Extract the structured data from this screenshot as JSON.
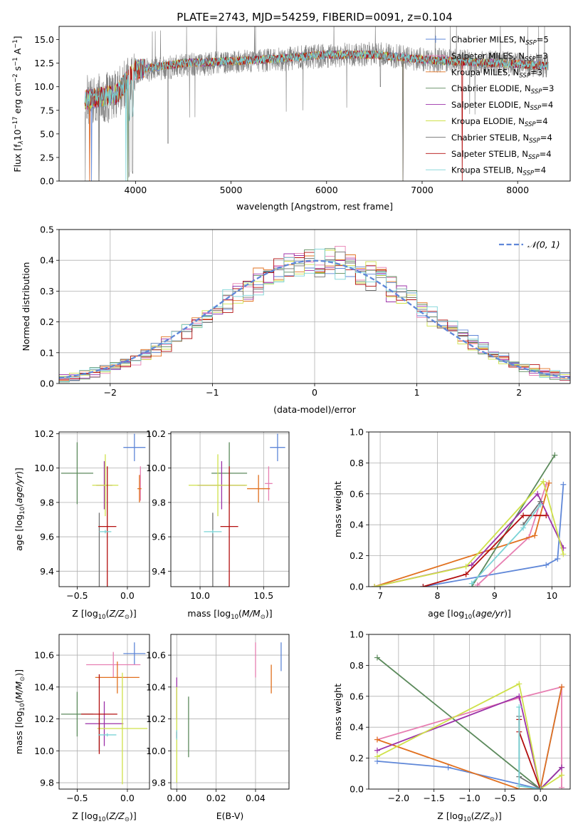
{
  "figure": {
    "title": "PLATE=2743, MJD=54259, FIBERID=0091, z=0.104"
  },
  "models": [
    {
      "name": "Chabrier MILES",
      "nssp": "5",
      "color": "#5f87d8"
    },
    {
      "name": "Salpeter MILES",
      "nssp": "3",
      "color": "#e77fb2"
    },
    {
      "name": "Kroupa MILES",
      "nssp": "3",
      "color": "#e1701f"
    },
    {
      "name": "Chabrier ELODIE",
      "nssp": "3",
      "color": "#5c8a5c"
    },
    {
      "name": "Salpeter ELODIE",
      "nssp": "4",
      "color": "#9c31a8"
    },
    {
      "name": "Kroupa ELODIE",
      "nssp": "4",
      "color": "#cfe14a"
    },
    {
      "name": "Chabrier STELIB",
      "nssp": "4",
      "color": "#707070"
    },
    {
      "name": "Salpeter STELIB",
      "nssp": "4",
      "color": "#b30f0f"
    },
    {
      "name": "Kroupa STELIB",
      "nssp": "4",
      "color": "#7ad3d6"
    }
  ],
  "chart_data": [
    {
      "id": "spectrum",
      "type": "line",
      "xlabel": "wavelength [Angstrom, rest frame]",
      "ylabel": "Flux [f",
      "xlim": [
        3200,
        8550
      ],
      "ylim": [
        0,
        16.4
      ],
      "xticks": [
        4000,
        5000,
        6000,
        7000,
        8000
      ],
      "yticks": [
        0.0,
        2.5,
        5.0,
        7.5,
        10.0,
        12.5,
        15.0
      ],
      "observed": {
        "x_start": 3470,
        "x_end": 8320,
        "continuum": [
          [
            3470,
            8.6
          ],
          [
            3800,
            9.0
          ],
          [
            4000,
            11.6
          ],
          [
            4500,
            12.3
          ],
          [
            5000,
            12.6
          ],
          [
            5500,
            12.9
          ],
          [
            6000,
            13.3
          ],
          [
            6500,
            13.5
          ],
          [
            7000,
            12.9
          ],
          [
            7500,
            12.7
          ],
          [
            8000,
            12.4
          ],
          [
            8320,
            12.2
          ]
        ]
      },
      "models_continuum": [
        [
          3470,
          8.6
        ],
        [
          3800,
          9.2
        ],
        [
          4000,
          11.8
        ],
        [
          4500,
          12.5
        ],
        [
          5000,
          12.7
        ],
        [
          5500,
          13.0
        ],
        [
          6000,
          13.4
        ],
        [
          6500,
          13.4
        ],
        [
          7000,
          12.9
        ],
        [
          7500,
          12.6
        ],
        [
          8000,
          12.4
        ],
        [
          8320,
          12.2
        ]
      ],
      "model_drops": [
        3540,
        3520,
        3520,
        3920,
        6800,
        6800,
        6800,
        7420,
        3900
      ]
    },
    {
      "id": "residuals",
      "type": "histogram",
      "xlabel": "(data-model)/error",
      "ylabel": "Normed distribution",
      "xlim": [
        -2.5,
        2.5
      ],
      "ylim": [
        0,
        0.5
      ],
      "xticks": [
        -2,
        -1,
        0,
        1,
        2
      ],
      "yticks": [
        0.0,
        0.1,
        0.2,
        0.3,
        0.4,
        0.5
      ],
      "bin_width": 0.1,
      "legend": {
        "label": "𝒩(0, 1)",
        "position": "upper right"
      }
    },
    {
      "id": "age-vs-Z",
      "type": "errorbar",
      "xlabel": "Z [log",
      "ylabel": "age  [log",
      "xlim": [
        -0.68,
        0.22
      ],
      "ylim": [
        9.31,
        10.21
      ],
      "xticks": [
        -0.5,
        0.0
      ],
      "yticks": [
        9.4,
        9.6,
        9.8,
        10.0,
        10.2
      ],
      "points": [
        {
          "x": 0.07,
          "xerr": 0.11,
          "y": 10.12,
          "yerr": 0.08
        },
        {
          "x": 0.13,
          "xerr": 0.0,
          "y": 9.91,
          "yerr": 0.1
        },
        {
          "x": 0.12,
          "xerr": 0.02,
          "y": 9.88,
          "yerr": 0.08
        },
        {
          "x": -0.5,
          "xerr": 0.16,
          "y": 9.97,
          "yerr": 0.18
        },
        {
          "x": -0.23,
          "xerr": 0.08,
          "y": 9.9,
          "yerr": 0.14
        },
        {
          "x": -0.22,
          "xerr": 0.13,
          "y": 9.9,
          "yerr": 0.18
        },
        {
          "x": -0.28,
          "xerr": 0.0,
          "y": 9.51,
          "yerr": 0.23
        },
        {
          "x": -0.2,
          "xerr": 0.09,
          "y": 9.66,
          "yerr": 0.35
        },
        {
          "x": -0.22,
          "xerr": 0.06,
          "y": 9.63,
          "yerr": 0.01
        }
      ]
    },
    {
      "id": "age-vs-mass",
      "type": "errorbar",
      "xlabel": "mass [log",
      "ylabel": "",
      "xlim": [
        9.77,
        10.7
      ],
      "ylim": [
        9.31,
        10.21
      ],
      "xticks": [
        10.0,
        10.5
      ],
      "yticks": [
        9.4,
        9.6,
        9.8,
        10.0,
        10.2
      ],
      "points": [
        {
          "x": 10.61,
          "xerr": 0.06,
          "y": 10.12,
          "yerr": 0.08
        },
        {
          "x": 10.54,
          "xerr": 0.03,
          "y": 9.91,
          "yerr": 0.1
        },
        {
          "x": 10.46,
          "xerr": 0.09,
          "y": 9.88,
          "yerr": 0.08
        },
        {
          "x": 10.23,
          "xerr": 0.14,
          "y": 9.97,
          "yerr": 0.18
        },
        {
          "x": 10.17,
          "xerr": 0.19,
          "y": 9.9,
          "yerr": 0.14
        },
        {
          "x": 10.14,
          "xerr": 0.23,
          "y": 9.9,
          "yerr": 0.18
        },
        {
          "x": 10.1,
          "xerr": 0.0,
          "y": 9.51,
          "yerr": 0.23
        },
        {
          "x": 10.23,
          "xerr": 0.07,
          "y": 9.66,
          "yerr": 0.35
        },
        {
          "x": 10.1,
          "xerr": 0.07,
          "y": 9.63,
          "yerr": 0.01
        }
      ]
    },
    {
      "id": "weight-vs-age",
      "type": "line",
      "xlabel": "age  [log",
      "ylabel": "mass weight",
      "xlim": [
        6.8,
        10.32
      ],
      "ylim": [
        0,
        1.0
      ],
      "xticks": [
        7,
        8,
        9,
        10
      ],
      "yticks": [
        0.0,
        0.2,
        0.4,
        0.6,
        0.8,
        1.0
      ],
      "series": [
        {
          "x": [
            7.75,
            9.9,
            10.1,
            10.2
          ],
          "y": [
            0.0,
            0.14,
            0.18,
            0.66
          ]
        },
        {
          "x": [
            8.7,
            9.6,
            9.9
          ],
          "y": [
            0.01,
            0.32,
            0.66
          ]
        },
        {
          "x": [
            6.9,
            9.7,
            9.95
          ],
          "y": [
            0.0,
            0.33,
            0.67
          ]
        },
        {
          "x": [
            8.6,
            10.05
          ],
          "y": [
            0.0,
            0.85
          ]
        },
        {
          "x": [
            6.9,
            8.6,
            9.75,
            10.2
          ],
          "y": [
            0.0,
            0.14,
            0.6,
            0.25
          ]
        },
        {
          "x": [
            6.9,
            8.5,
            9.85,
            10.2
          ],
          "y": [
            0.0,
            0.13,
            0.68,
            0.21
          ]
        },
        {
          "x": [
            9.5,
            9.8
          ],
          "y": [
            0.4,
            0.55
          ]
        },
        {
          "x": [
            7.75,
            8.5,
            9.5,
            9.9
          ],
          "y": [
            0.0,
            0.08,
            0.46,
            0.46
          ]
        },
        {
          "x": [
            8.6,
            9.5,
            9.8
          ],
          "y": [
            0.02,
            0.38,
            0.53
          ]
        }
      ]
    },
    {
      "id": "mass-vs-Z",
      "type": "errorbar",
      "xlabel": "Z [log",
      "ylabel": "mass [log",
      "xlim": [
        -0.68,
        0.22
      ],
      "ylim": [
        9.76,
        10.73
      ],
      "xticks": [
        -0.5,
        0.0
      ],
      "yticks": [
        9.8,
        10.0,
        10.2,
        10.4,
        10.6
      ],
      "points": [
        {
          "x": 0.07,
          "xerr": 0.11,
          "y": 10.61,
          "yerr": 0.07
        },
        {
          "x": -0.14,
          "xerr": 0.27,
          "y": 10.54,
          "yerr": 0.08
        },
        {
          "x": -0.1,
          "xerr": 0.22,
          "y": 10.46,
          "yerr": 0.1
        },
        {
          "x": -0.5,
          "xerr": 0.16,
          "y": 10.23,
          "yerr": 0.14
        },
        {
          "x": -0.23,
          "xerr": 0.19,
          "y": 10.17,
          "yerr": 0.14
        },
        {
          "x": -0.05,
          "xerr": 0.25,
          "y": 10.14,
          "yerr": 0.35
        },
        {
          "x": -0.28,
          "xerr": 0.0,
          "y": 10.1,
          "yerr": 0.1
        },
        {
          "x": -0.28,
          "xerr": 0.18,
          "y": 10.23,
          "yerr": 0.25
        },
        {
          "x": -0.2,
          "xerr": 0.09,
          "y": 10.1,
          "yerr": 0.01
        }
      ]
    },
    {
      "id": "mass-vs-ebv",
      "type": "errorbar",
      "xlabel": "E(B-V)",
      "ylabel": "",
      "xlim": [
        -0.003,
        0.057
      ],
      "ylim": [
        9.76,
        10.73
      ],
      "xticks": [
        0.0,
        0.02,
        0.04
      ],
      "yticks": [
        9.8,
        10.0,
        10.2,
        10.4,
        10.6
      ],
      "points": [
        {
          "x": 0.053,
          "xerr": 0.0,
          "y": 10.59,
          "yerr": 0.09
        },
        {
          "x": 0.04,
          "xerr": 0.0,
          "y": 10.57,
          "yerr": 0.11
        },
        {
          "x": 0.048,
          "xerr": 0.0,
          "y": 10.45,
          "yerr": 0.09
        },
        {
          "x": 0.006,
          "xerr": 0.0,
          "y": 10.15,
          "yerr": 0.19
        },
        {
          "x": 0.0,
          "xerr": 0.0,
          "y": 10.33,
          "yerr": 0.13
        },
        {
          "x": 0.0,
          "xerr": 0.0,
          "y": 10.1,
          "yerr": 0.3
        },
        {
          "x": 0.0,
          "xerr": 0.0,
          "y": 10.1,
          "yerr": 0.02
        },
        {
          "x": 0.0,
          "xerr": 0.0,
          "y": 10.1,
          "yerr": 0.02
        },
        {
          "x": 0.0,
          "xerr": 0.0,
          "y": 10.1,
          "yerr": 0.03
        }
      ]
    },
    {
      "id": "weight-vs-Z",
      "type": "line",
      "xlabel": "Z [log",
      "ylabel": "mass weight",
      "xlim": [
        -2.42,
        0.42
      ],
      "ylim": [
        0,
        1.0
      ],
      "xticks": [
        -2.0,
        -1.5,
        -1.0,
        -0.5,
        0.0
      ],
      "yticks": [
        0.0,
        0.2,
        0.4,
        0.6,
        0.8,
        1.0
      ],
      "series": [
        {
          "x": [
            -2.3,
            -1.3,
            0.0,
            0.3
          ],
          "y": [
            0.18,
            0.14,
            0.0,
            0.66
          ]
        },
        {
          "x": [
            -2.3,
            -0.3,
            0.3,
            0.3
          ],
          "y": [
            0.32,
            0.59,
            0.66,
            0.01
          ]
        },
        {
          "x": [
            -2.3,
            -0.3,
            0.0,
            0.3
          ],
          "y": [
            0.32,
            0.0,
            0.0,
            0.66
          ]
        },
        {
          "x": [
            -2.3,
            0.0,
            0.3
          ],
          "y": [
            0.85,
            0.0,
            0.14
          ]
        },
        {
          "x": [
            -2.3,
            -0.3,
            0.0,
            0.3
          ],
          "y": [
            0.25,
            0.6,
            0.0,
            0.14
          ]
        },
        {
          "x": [
            -2.3,
            -0.3,
            0.0,
            0.3
          ],
          "y": [
            0.21,
            0.68,
            0.0,
            0.09
          ]
        },
        {
          "x": [
            -0.3,
            -0.3,
            0.0
          ],
          "y": [
            0.47,
            0.08,
            0.0
          ]
        },
        {
          "x": [
            -0.3,
            -0.3,
            0.0
          ],
          "y": [
            0.45,
            0.37,
            0.0
          ]
        },
        {
          "x": [
            -0.3,
            -0.3,
            0.0
          ],
          "y": [
            0.53,
            0.02,
            0.0
          ]
        }
      ]
    }
  ]
}
